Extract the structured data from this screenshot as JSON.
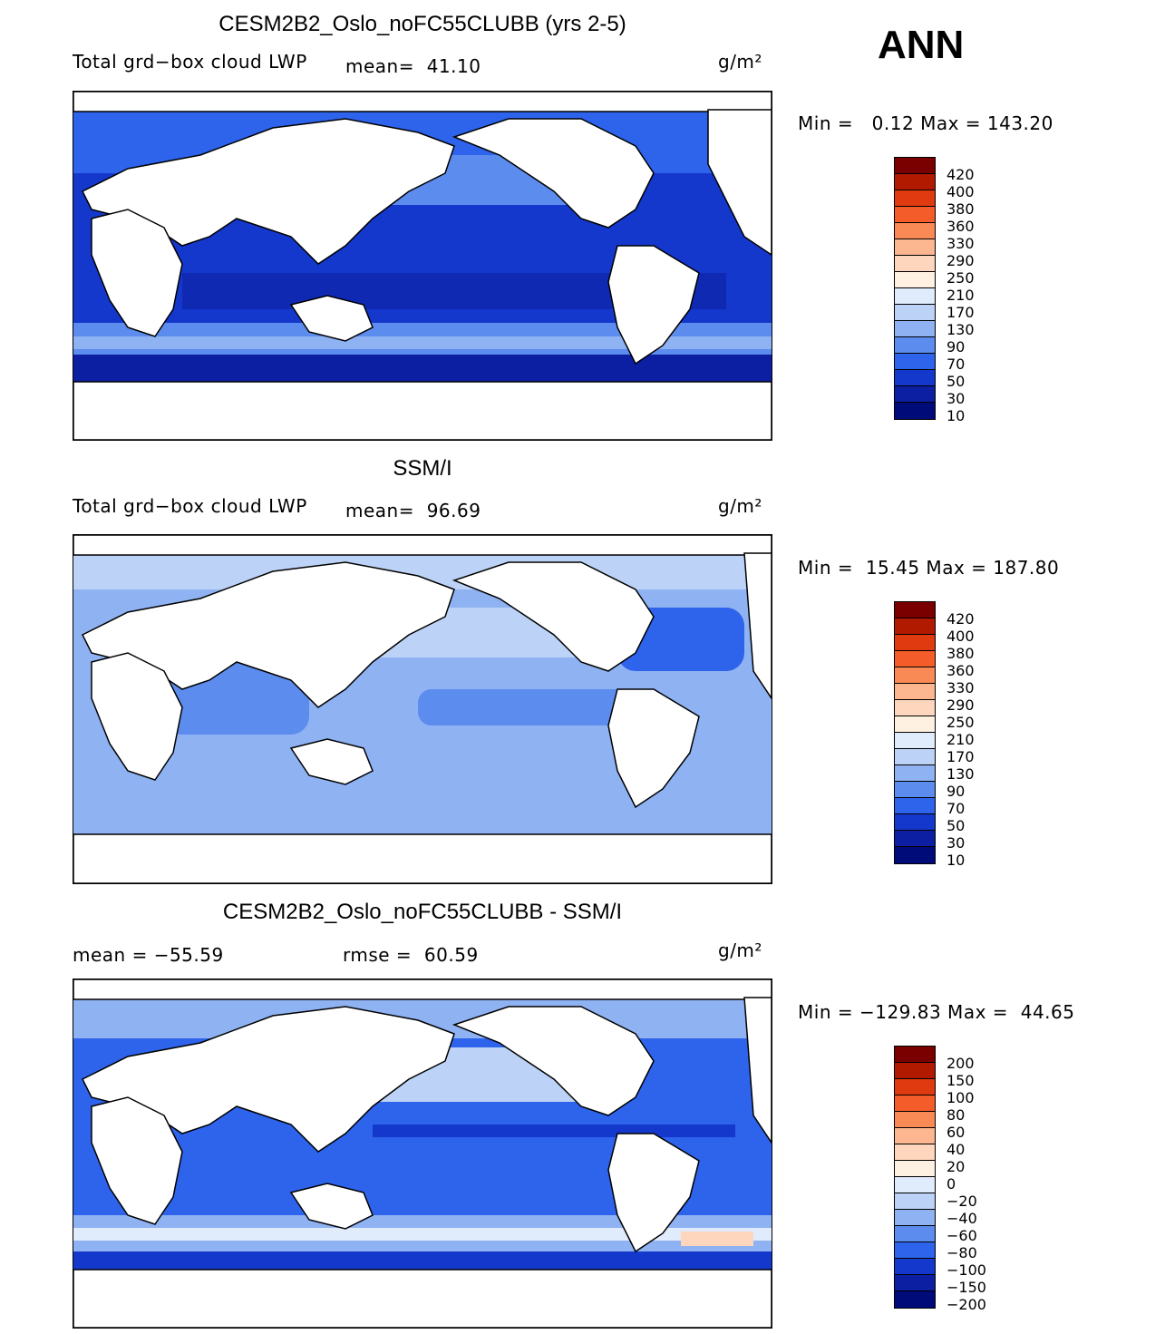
{
  "season": "ANN",
  "units": "g/m²",
  "panels": [
    {
      "title": "CESM2B2_Oslo_noFC55CLUBB (yrs 2-5)",
      "left_label": "Total grd−box cloud LWP",
      "mean_text": "mean=  41.10",
      "minmax": "Min =   0.12 Max = 143.20",
      "colorbar": {
        "labels": [
          "420",
          "400",
          "380",
          "360",
          "330",
          "290",
          "250",
          "210",
          "170",
          "130",
          "90",
          "70",
          "50",
          "30",
          "10"
        ],
        "colors": [
          "#7a0000",
          "#b21a00",
          "#e03a10",
          "#f45d2a",
          "#fa8a55",
          "#fcb790",
          "#fdd6bd",
          "#fff1e2",
          "#e0ebfc",
          "#bcd3f7",
          "#8fb2f3",
          "#5c8ced",
          "#2e63ec",
          "#1438cc",
          "#0c1fa2",
          "#000b7a"
        ]
      }
    },
    {
      "title": "SSM/I",
      "left_label": "Total grd−box cloud LWP",
      "mean_text": "mean=  96.69",
      "minmax": "Min =  15.45 Max = 187.80",
      "colorbar": {
        "labels": [
          "420",
          "400",
          "380",
          "360",
          "330",
          "290",
          "250",
          "210",
          "170",
          "130",
          "90",
          "70",
          "50",
          "30",
          "10"
        ],
        "colors": [
          "#7a0000",
          "#b21a00",
          "#e03a10",
          "#f45d2a",
          "#fa8a55",
          "#fcb790",
          "#fdd6bd",
          "#fff1e2",
          "#e0ebfc",
          "#bcd3f7",
          "#8fb2f3",
          "#5c8ced",
          "#2e63ec",
          "#1438cc",
          "#0c1fa2",
          "#000b7a"
        ]
      }
    },
    {
      "title": "CESM2B2_Oslo_noFC55CLUBB - SSM/I",
      "left_label": "mean = −55.59",
      "mean_text": "rmse =  60.59",
      "minmax": "Min = −129.83 Max =  44.65",
      "colorbar": {
        "labels": [
          "200",
          "150",
          "100",
          "80",
          "60",
          "40",
          "20",
          "0",
          "−20",
          "−40",
          "−60",
          "−80",
          "−100",
          "−150",
          "−200"
        ],
        "colors": [
          "#7a0000",
          "#b21a00",
          "#e03a10",
          "#f45d2a",
          "#fa8a55",
          "#fcb790",
          "#fdd6bd",
          "#fff1e2",
          "#e0ebfc",
          "#bcd3f7",
          "#8fb2f3",
          "#5c8ced",
          "#2e63ec",
          "#1438cc",
          "#0c1fa2",
          "#000b7a"
        ]
      }
    }
  ]
}
